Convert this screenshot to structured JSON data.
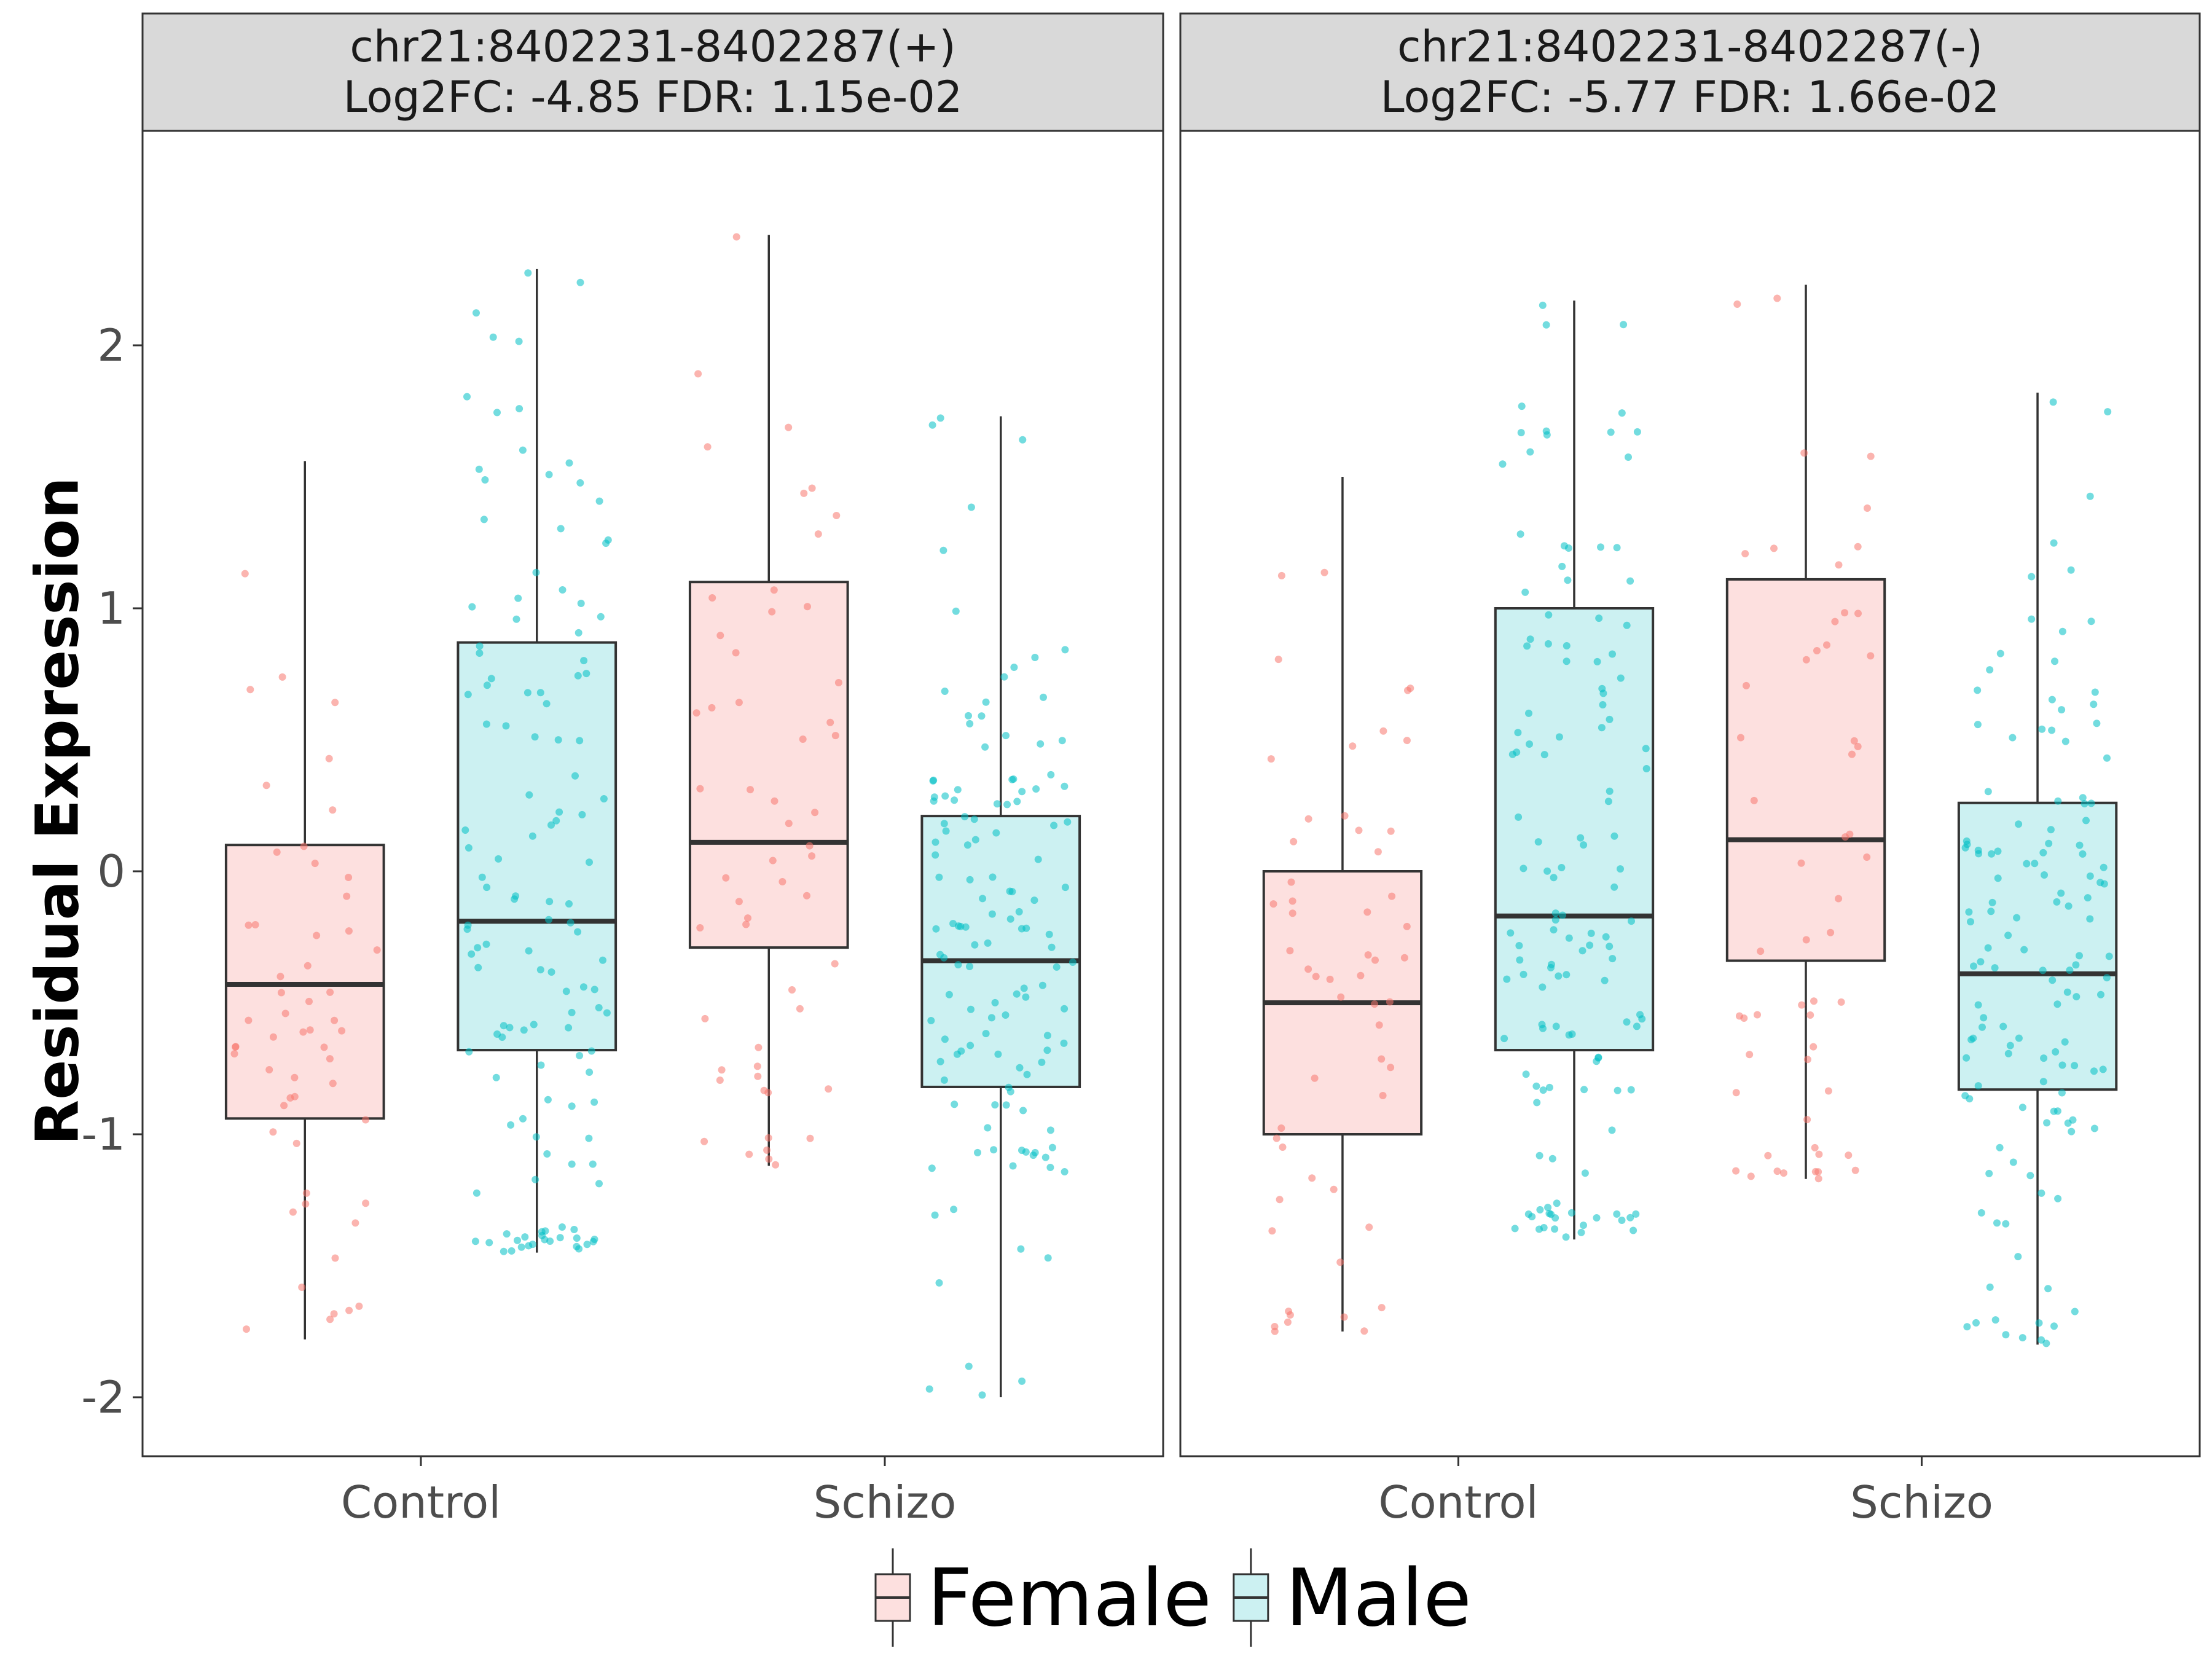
{
  "chart_data": {
    "type": "box",
    "ylabel": "Residual Expression",
    "xlabel": "",
    "ylim": [
      -2.2,
      2.65
    ],
    "yticks": [
      2,
      1,
      0,
      -1,
      -2
    ],
    "ytick_labels": [
      "2",
      "1",
      "0",
      "-1",
      "-2"
    ],
    "categories": [
      "Control",
      "Schizo"
    ],
    "legend": {
      "position": "bottom",
      "entries": [
        {
          "name": "Female",
          "fill": "#fde0df",
          "point": "#f8766d"
        },
        {
          "name": "Male",
          "fill": "#ccf1f2",
          "point": "#00bfc4"
        }
      ]
    },
    "panels": [
      {
        "strip": [
          "chr21:8402231-8402287(+)",
          "Log2FC: -4.85 FDR: 1.15e-02"
        ],
        "boxes": [
          {
            "category": "Control",
            "group": "Female",
            "whisker_low": -1.78,
            "q1": -0.94,
            "median": -0.43,
            "q3": 0.1,
            "whisker_high": 1.56
          },
          {
            "category": "Control",
            "group": "Male",
            "whisker_low": -1.45,
            "q1": -0.68,
            "median": -0.19,
            "q3": 0.87,
            "whisker_high": 2.29
          },
          {
            "category": "Schizo",
            "group": "Female",
            "whisker_low": -1.12,
            "q1": -0.29,
            "median": 0.11,
            "q3": 1.1,
            "whisker_high": 2.42
          },
          {
            "category": "Schizo",
            "group": "Male",
            "whisker_low": -2.0,
            "q1": -0.82,
            "median": -0.34,
            "q3": 0.21,
            "whisker_high": 1.73
          }
        ]
      },
      {
        "strip": [
          "chr21:8402231-8402287(-)",
          "Log2FC: -5.77 FDR: 1.66e-02"
        ],
        "boxes": [
          {
            "category": "Control",
            "group": "Female",
            "whisker_low": -1.75,
            "q1": -1.0,
            "median": -0.5,
            "q3": 0.0,
            "whisker_high": 1.5
          },
          {
            "category": "Control",
            "group": "Male",
            "whisker_low": -1.4,
            "q1": -0.68,
            "median": -0.17,
            "q3": 1.0,
            "whisker_high": 2.17
          },
          {
            "category": "Schizo",
            "group": "Female",
            "whisker_low": -1.17,
            "q1": -0.34,
            "median": 0.12,
            "q3": 1.11,
            "whisker_high": 2.23
          },
          {
            "category": "Schizo",
            "group": "Male",
            "whisker_low": -1.8,
            "q1": -0.83,
            "median": -0.39,
            "q3": 0.26,
            "whisker_high": 1.82
          }
        ]
      }
    ]
  }
}
